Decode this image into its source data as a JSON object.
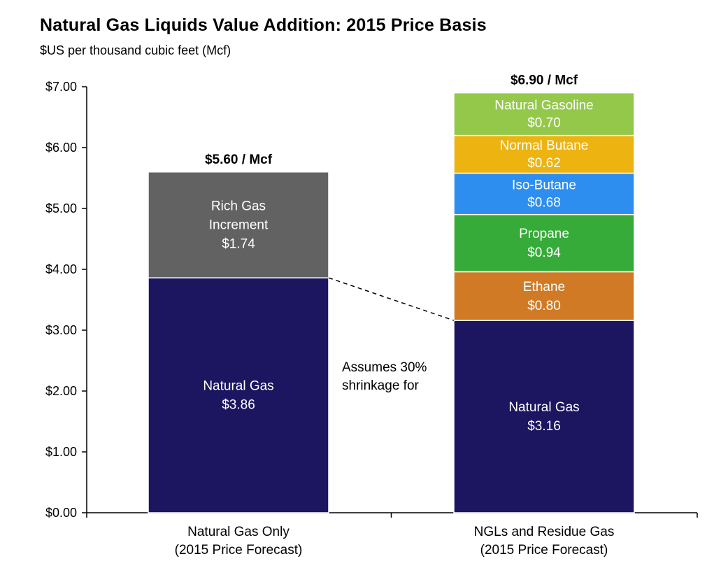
{
  "chart_data": {
    "type": "bar",
    "stacked": true,
    "title": "Natural Gas Liquids Value Addition: 2015 Price Basis",
    "subtitle": "$US per thousand cubic feet (Mcf)",
    "ylim": [
      0,
      7
    ],
    "yticks": [
      "$0.00",
      "$1.00",
      "$2.00",
      "$3.00",
      "$4.00",
      "$5.00",
      "$6.00",
      "$7.00"
    ],
    "grid": false,
    "categories": [
      [
        "Natural Gas Only",
        "(2015 Price Forecast)"
      ],
      [
        "NGLs and Residue Gas",
        "(2015 Price Forecast)"
      ]
    ],
    "totals": [
      "$5.60 / Mcf",
      "$6.90 / Mcf"
    ],
    "stacks": [
      [
        {
          "name": [
            "Natural Gas"
          ],
          "value": 3.86,
          "value_label": "$3.86",
          "color": "#1c1660"
        },
        {
          "name": [
            "Rich Gas",
            "Increment"
          ],
          "value": 1.74,
          "value_label": "$1.74",
          "color": "#626262"
        }
      ],
      [
        {
          "name": [
            "Natural Gas"
          ],
          "value": 3.16,
          "value_label": "$3.16",
          "color": "#1c1660"
        },
        {
          "name": [
            "Ethane"
          ],
          "value": 0.8,
          "value_label": "$0.80",
          "color": "#d17a26"
        },
        {
          "name": [
            "Propane"
          ],
          "value": 0.94,
          "value_label": "$0.94",
          "color": "#36ab39"
        },
        {
          "name": [
            "Iso-Butane"
          ],
          "value": 0.68,
          "value_label": "$0.68",
          "color": "#2e8ef0"
        },
        {
          "name": [
            "Normal Butane"
          ],
          "value": 0.62,
          "value_label": "$0.62",
          "color": "#edb311"
        },
        {
          "name": [
            "Natural Gasoline"
          ],
          "value": 0.7,
          "value_label": "$0.70",
          "color": "#93c84a"
        }
      ]
    ],
    "annotation": [
      "Assumes 30%",
      "shrinkage for"
    ]
  }
}
